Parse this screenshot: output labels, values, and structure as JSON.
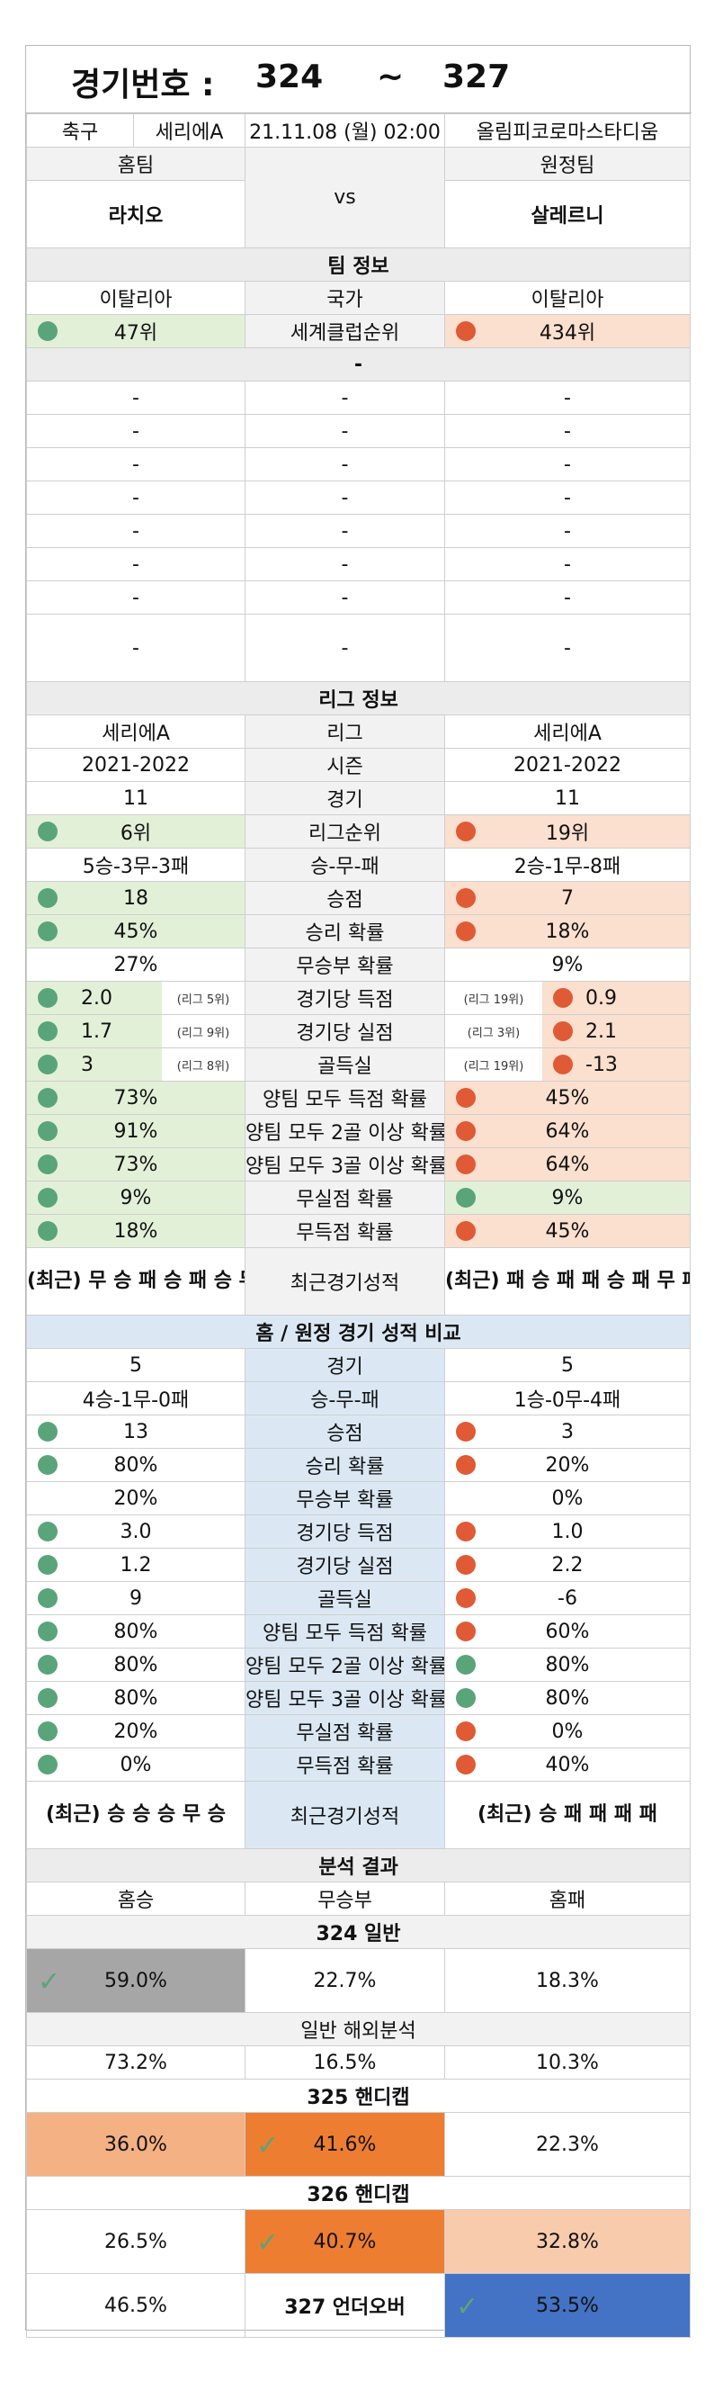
{
  "header": {
    "label": "경기번호 :",
    "from": "324",
    "tilde": "~",
    "to": "327"
  },
  "match": {
    "sport": "축구",
    "league": "세리에A",
    "datetime": "21.11.08 (월) 02:00",
    "venue": "올림피코로마스타디움"
  },
  "teams": {
    "home_label": "홈팀",
    "away_label": "원정팀",
    "home": "라치오",
    "vs": "vs",
    "away": "살레르니"
  },
  "team_info": {
    "title": "팀 정보",
    "country": {
      "home": "이탈리아",
      "label": "국가",
      "away": "이탈리아"
    },
    "club_rank": {
      "home": "47위",
      "label": "세계클럽순위",
      "away": "434위"
    },
    "sub_title": "-",
    "dash": "-"
  },
  "league_info": {
    "title": "리그 정보",
    "rows": [
      {
        "home": "세리에A",
        "label": "리그",
        "away": "세리에A"
      },
      {
        "home": "2021-2022",
        "label": "시즌",
        "away": "2021-2022"
      },
      {
        "home": "11",
        "label": "경기",
        "away": "11"
      },
      {
        "home": "6위",
        "label": "리그순위",
        "away": "19위"
      },
      {
        "home": "5승-3무-3패",
        "label": "승-무-패",
        "away": "2승-1무-8패"
      },
      {
        "home": "18",
        "label": "승점",
        "away": "7"
      },
      {
        "home": "45%",
        "label": "승리 확률",
        "away": "18%"
      },
      {
        "home": "27%",
        "label": "무승부 확률",
        "away": "9%"
      }
    ],
    "ranked": [
      {
        "home": "2.0",
        "home_note": "(리그 5위)",
        "label": "경기당 득점",
        "away_note": "(리그 19위)",
        "away": "0.9"
      },
      {
        "home": "1.7",
        "home_note": "(리그 9위)",
        "label": "경기당 실점",
        "away_note": "(리그 3위)",
        "away": "2.1"
      },
      {
        "home": "3",
        "home_note": "(리그 8위)",
        "label": "골득실",
        "away_note": "(리그 19위)",
        "away": "-13"
      }
    ],
    "prob": [
      {
        "home": "73%",
        "label": "양팀 모두 득점 확률",
        "away": "45%"
      },
      {
        "home": "91%",
        "label": "양팀 모두 2골 이상 확률",
        "away": "64%"
      },
      {
        "home": "73%",
        "label": "양팀 모두 3골 이상 확률",
        "away": "64%"
      },
      {
        "home": "9%",
        "label": "무실점 확률",
        "away": "9%"
      },
      {
        "home": "18%",
        "label": "무득점 확률",
        "away": "45%"
      }
    ],
    "recent": {
      "home": "(최근) 무 승 패 승 패 승 무 무 패 승",
      "label": "최근경기성적",
      "away": "(최근) 패 승 패 패 승 패 무 패 패 패"
    }
  },
  "home_away": {
    "title": "홈 / 원정 경기 성적 비교",
    "rows": [
      {
        "home": "5",
        "label": "경기",
        "away": "5"
      },
      {
        "home": "4승-1무-0패",
        "label": "승-무-패",
        "away": "1승-0무-4패"
      },
      {
        "home": "13",
        "label": "승점",
        "away": "3"
      },
      {
        "home": "80%",
        "label": "승리 확률",
        "away": "20%"
      },
      {
        "home": "20%",
        "label": "무승부 확률",
        "away": "0%"
      },
      {
        "home": "3.0",
        "label": "경기당 득점",
        "away": "1.0"
      },
      {
        "home": "1.2",
        "label": "경기당 실점",
        "away": "2.2"
      },
      {
        "home": "9",
        "label": "골득실",
        "away": "-6"
      },
      {
        "home": "80%",
        "label": "양팀 모두 득점 확률",
        "away": "60%"
      },
      {
        "home": "80%",
        "label": "양팀 모두 2골 이상 확률",
        "away": "80%"
      },
      {
        "home": "80%",
        "label": "양팀 모두 3골 이상 확률",
        "away": "80%"
      },
      {
        "home": "20%",
        "label": "무실점 확률",
        "away": "0%"
      },
      {
        "home": "0%",
        "label": "무득점 확률",
        "away": "40%"
      }
    ],
    "recent": {
      "home": "(최근) 승 승 승 무 승",
      "label": "최근경기성적",
      "away": "(최근) 승 패 패 패 패"
    }
  },
  "analysis": {
    "title": "분석 결과",
    "cols": {
      "win": "홈승",
      "draw": "무승부",
      "lose": "홈패"
    },
    "general": {
      "title": "324 일반",
      "win": "59.0%",
      "draw": "22.7%",
      "lose": "18.3%"
    },
    "overseas": {
      "title": "일반 해외분석",
      "win": "73.2%",
      "draw": "16.5%",
      "lose": "10.3%"
    },
    "h325": {
      "title": "325 핸디캡",
      "win": "36.0%",
      "draw": "41.6%",
      "lose": "22.3%"
    },
    "h326": {
      "title": "326 핸디캡",
      "win": "26.5%",
      "draw": "40.7%",
      "lose": "32.8%"
    },
    "uo327": {
      "under": "46.5%",
      "title": "327 언더오버",
      "over": "53.5%"
    }
  },
  "colors": {
    "green_bg": "#e3f0d8",
    "orange_bg": "#fbdfcf",
    "green_dot": "#5aa47a",
    "red_dot": "#e05a36",
    "blue_header": "#dbe8f4",
    "grey_pick": "#a6a6a6",
    "orange_pick": "#ed7d31",
    "blue_pick": "#4472c4"
  },
  "icons": {
    "dot": "circle-icon",
    "check": "checkmark-icon"
  }
}
